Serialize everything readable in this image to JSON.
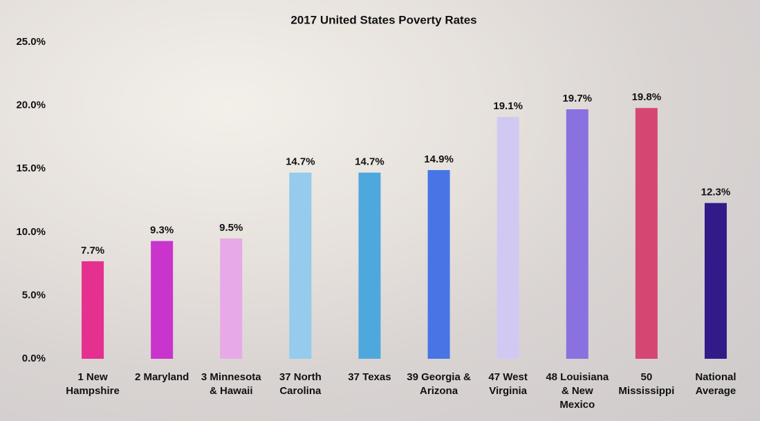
{
  "chart_data": {
    "type": "bar",
    "title": "2017 United States Poverty Rates",
    "categories": [
      "1 New Hampshire",
      "2 Maryland",
      "3 Minnesota & Hawaii",
      "37 North Carolina",
      "37 Texas",
      "39 Georgia & Arizona",
      "47 West Virginia",
      "48 Louisiana & New Mexico",
      "50 Mississippi",
      "National Average"
    ],
    "values": [
      7.7,
      9.3,
      9.5,
      14.7,
      14.7,
      14.9,
      19.1,
      19.7,
      19.8,
      12.3
    ],
    "value_labels": [
      "7.7%",
      "9.3%",
      "9.5%",
      "14.7%",
      "14.7%",
      "14.9%",
      "19.1%",
      "19.7%",
      "19.8%",
      "12.3%"
    ],
    "colors": [
      "#e5308f",
      "#c834cc",
      "#e8a9e8",
      "#95cbec",
      "#4fa8dd",
      "#4775e6",
      "#d1c9f2",
      "#8b70e0",
      "#d64672",
      "#321b88"
    ],
    "ylim": [
      0,
      25
    ],
    "yticks": [
      {
        "value": 0,
        "label": "0.0%"
      },
      {
        "value": 5,
        "label": "5.0%"
      },
      {
        "value": 10,
        "label": "10.0%"
      },
      {
        "value": 15,
        "label": "15.0%"
      },
      {
        "value": 20,
        "label": "20.0%"
      },
      {
        "value": 25,
        "label": "25.0%"
      }
    ],
    "grid": false
  }
}
